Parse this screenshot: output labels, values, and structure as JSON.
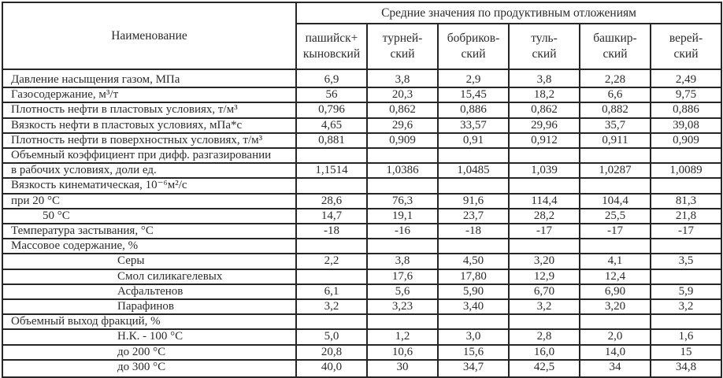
{
  "colors": {
    "background": "#ffffff",
    "text": "#2b2b2b",
    "border": "#262626"
  },
  "table": {
    "name_header": "Наименование",
    "group_header": "Средние значения по продуктивным отложениям",
    "columns": [
      {
        "line1": "пашийск+",
        "line2": "кыновский"
      },
      {
        "line1": "турней-",
        "line2": "ский"
      },
      {
        "line1": "бобриков-",
        "line2": "ский"
      },
      {
        "line1": "туль-",
        "line2": "ский"
      },
      {
        "line1": "башкир-",
        "line2": "ский"
      },
      {
        "line1": "верей-",
        "line2": "ский"
      }
    ],
    "rows": [
      {
        "label": "Давление насыщения газом, МПа",
        "indent": 0,
        "values": [
          "6,9",
          "3,8",
          "2,9",
          "3,8",
          "2,28",
          "2,49"
        ]
      },
      {
        "label": "Газосодержание, м³/т",
        "indent": 0,
        "values": [
          "56",
          "20,3",
          "15,45",
          "18,2",
          "6,6",
          "9,75"
        ]
      },
      {
        "label": "Плотность нефти в пластовых условиях, т/м³",
        "indent": 0,
        "values": [
          "0,796",
          "0,862",
          "0,886",
          "0,862",
          "0,882",
          "0,886"
        ]
      },
      {
        "label": "Вязкость нефти в пластовых условиях, мПа*с",
        "indent": 0,
        "values": [
          "4,65",
          "29,6",
          "33,57",
          "29,96",
          "35,7",
          "39,08"
        ]
      },
      {
        "label": "Плотность нефти в поверхностных условиях, т/м³",
        "indent": 0,
        "values": [
          "0,881",
          "0,909",
          "0,91",
          "0,912",
          "0,911",
          "0,909"
        ]
      },
      {
        "label": "Объемный коэффициент при дифф. разгазировании",
        "indent": 0,
        "values": [
          "",
          "",
          "",
          "",
          "",
          ""
        ]
      },
      {
        "label": "в рабочих условиях, доли ед.",
        "indent": 0,
        "values": [
          "1,1514",
          "1,0386",
          "1,0485",
          "1,039",
          "1,0287",
          "1,0089"
        ]
      },
      {
        "label": "Вязкость кинематическая, 10⁻⁶м²/с",
        "indent": 0,
        "values": [
          "",
          "",
          "",
          "",
          "",
          ""
        ]
      },
      {
        "label": "при 20 °С",
        "indent": 0,
        "values": [
          "28,6",
          "76,3",
          "91,6",
          "114,4",
          "104,4",
          "81,3"
        ]
      },
      {
        "label": "50 °С",
        "indent": 1,
        "values": [
          "14,7",
          "19,1",
          "23,7",
          "28,2",
          "25,5",
          "21,8"
        ]
      },
      {
        "label": "Температура застывания, °С",
        "indent": 0,
        "values": [
          "-18",
          "-16",
          "-18",
          "-17",
          "-17",
          "-17"
        ]
      },
      {
        "label": "Массовое содержание, %",
        "indent": 0,
        "values": [
          "",
          "",
          "",
          "",
          "",
          ""
        ]
      },
      {
        "label": "Серы",
        "indent": 2,
        "values": [
          "2,2",
          "3,8",
          "4,50",
          "3,20",
          "4,1",
          "3,5"
        ]
      },
      {
        "label": "Смол  силикагелевых",
        "indent": 2,
        "values": [
          "",
          "17,6",
          "17,80",
          "12,9",
          "12,4",
          ""
        ]
      },
      {
        "label": "Асфальтенов",
        "indent": 2,
        "values": [
          "6,1",
          "5,6",
          "5,90",
          "6,70",
          "6,90",
          "5,9"
        ]
      },
      {
        "label": "Парафинов",
        "indent": 2,
        "values": [
          "3,2",
          "3,23",
          "3,40",
          "3,2",
          "3,20",
          "3,2"
        ]
      },
      {
        "label": "Объемный выход фракций, %",
        "indent": 0,
        "values": [
          "",
          "",
          "",
          "",
          "",
          ""
        ]
      },
      {
        "label": "Н.К. - 100 °С",
        "indent": 2,
        "values": [
          "5,0",
          "1,2",
          "3,0",
          "2,8",
          "2,0",
          "1,6"
        ]
      },
      {
        "label": "до 200 °С",
        "indent": 2,
        "values": [
          "20,8",
          "10,6",
          "15,6",
          "16,0",
          "14,0",
          "15"
        ]
      },
      {
        "label": "до 300 °С",
        "indent": 2,
        "values": [
          "40,0",
          "30",
          "34,7",
          "42,5",
          "34",
          "34,8"
        ]
      }
    ]
  }
}
